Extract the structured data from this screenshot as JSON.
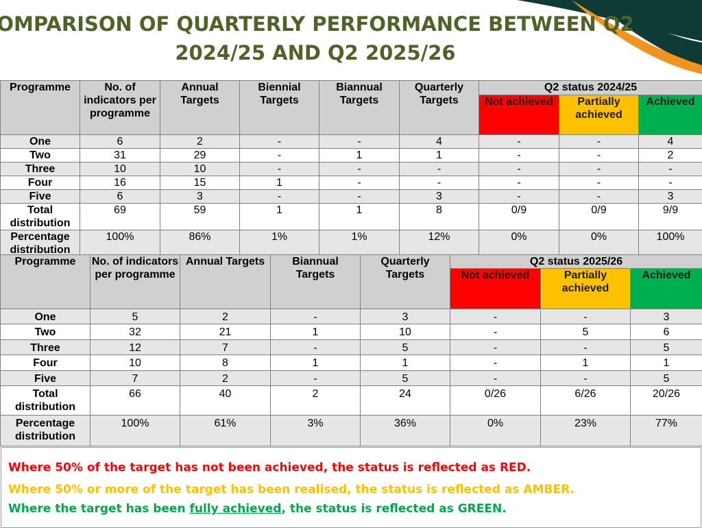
{
  "title": {
    "line1": "OMPARISON OF QUARTERLY PERFORMANCE BETWEEN Q2",
    "line2": "2024/25 AND Q2 2025/26"
  },
  "colors": {
    "title": "#4f6228",
    "red": "#ff0000",
    "amber": "#ffc000",
    "green": "#00b050"
  },
  "table1": {
    "headers": {
      "programme": "Programme",
      "indicators": "No. of indicators per programme",
      "annual": "Annual Targets",
      "biennial": "Biennial Targets",
      "biannual": "Biannual Targets",
      "quarterly": "Quarterly Targets",
      "status": "Q2 status 2024/25",
      "not_achieved": "Not achieved",
      "partially": "Partially achieved",
      "achieved": "Achieved"
    },
    "rows": [
      [
        "One",
        "6",
        "2",
        "-",
        "-",
        "4",
        "-",
        "-",
        "4"
      ],
      [
        "Two",
        "31",
        "29",
        "-",
        "1",
        "1",
        "-",
        "-",
        "2"
      ],
      [
        "Three",
        "10",
        "10",
        "-",
        "-",
        "-",
        "-",
        "-",
        "-"
      ],
      [
        "Four",
        "16",
        "15",
        "1",
        "-",
        "-",
        "-",
        "-",
        "-"
      ],
      [
        "Five",
        "6",
        "3",
        "-",
        "-",
        "3",
        "-",
        "-",
        "3"
      ],
      [
        "Total distribution",
        "69",
        "59",
        "1",
        "1",
        "8",
        "0/9",
        "0/9",
        "9/9"
      ],
      [
        "Percentage distribution",
        "100%",
        "86%",
        "1%",
        "1%",
        "12%",
        "0%",
        "0%",
        "100%"
      ]
    ]
  },
  "table2": {
    "headers": {
      "programme": "Programme",
      "indicators": "No. of indicators per programme",
      "annual": "Annual Targets",
      "biannual": "Biannual Targets",
      "quarterly": "Quarterly Targets",
      "status": "Q2 status 2025/26",
      "not_achieved": "Not achieved",
      "partially": "Partially achieved",
      "achieved": "Achieved"
    },
    "rows": [
      [
        "One",
        "5",
        "2",
        "-",
        "3",
        "-",
        "-",
        "3"
      ],
      [
        "Two",
        "32",
        "21",
        "1",
        "10",
        "-",
        "5",
        "6"
      ],
      [
        "Three",
        "12",
        "7",
        "-",
        "5",
        "-",
        "-",
        "5"
      ],
      [
        "Four",
        "10",
        "8",
        "1",
        "1",
        "-",
        "1",
        "1"
      ],
      [
        "Five",
        "7",
        "2",
        "-",
        "5",
        "-",
        "-",
        "5"
      ],
      [
        "Total distribution",
        "66",
        "40",
        "2",
        "24",
        "0/26",
        "6/26",
        "20/26"
      ],
      [
        "Percentage distribution",
        "100%",
        "61%",
        "3%",
        "36%",
        "0%",
        "23%",
        "77%"
      ]
    ]
  },
  "legend": {
    "red": "Where 50% of the target has not been achieved, the status is reflected as RED.",
    "amber": "Where 50% or more of the target has been realised, the status is reflected as AMBER.",
    "green_pre": "Where the target has been ",
    "green_u": "fully achieved",
    "green_post": ", the status is reflected as GREEN."
  }
}
